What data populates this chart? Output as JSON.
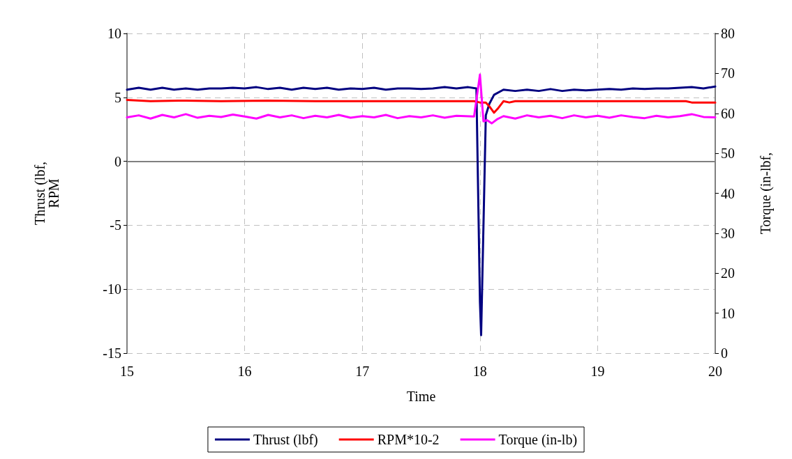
{
  "chart_data": {
    "type": "line",
    "xlabel": "Time",
    "ylabel": "Thrust (lbf,\nRPM",
    "y2label": "Torque (in-lbf,",
    "xlim": [
      15,
      20
    ],
    "xticks": [
      15,
      16,
      17,
      18,
      19,
      20
    ],
    "ylim": [
      -15,
      10
    ],
    "yticks": [
      -15,
      -10,
      -5,
      0,
      5,
      10
    ],
    "y2lim": [
      0,
      80
    ],
    "y2ticks": [
      0,
      10,
      20,
      30,
      40,
      50,
      60,
      70,
      80
    ],
    "grid": true,
    "legend": "bottom",
    "marker": "none",
    "line_style": "solid",
    "series": [
      {
        "name": "Thrust (lbf)",
        "color": "#000080",
        "x": [
          15.0,
          15.1,
          15.2,
          15.3,
          15.4,
          15.5,
          15.6,
          15.7,
          15.8,
          15.9,
          16.0,
          16.1,
          16.2,
          16.3,
          16.4,
          16.5,
          16.6,
          16.7,
          16.8,
          16.9,
          17.0,
          17.1,
          17.2,
          17.3,
          17.4,
          17.5,
          17.6,
          17.7,
          17.8,
          17.9,
          17.97,
          18.0,
          18.01,
          18.03,
          18.05,
          18.08,
          18.12,
          18.2,
          18.3,
          18.4,
          18.5,
          18.6,
          18.7,
          18.8,
          18.9,
          19.0,
          19.1,
          19.2,
          19.3,
          19.4,
          19.5,
          19.6,
          19.7,
          19.8,
          19.9,
          20.0
        ],
        "values": [
          5.6,
          5.75,
          5.6,
          5.75,
          5.6,
          5.7,
          5.6,
          5.7,
          5.7,
          5.75,
          5.7,
          5.8,
          5.65,
          5.75,
          5.6,
          5.75,
          5.65,
          5.75,
          5.6,
          5.7,
          5.65,
          5.75,
          5.6,
          5.7,
          5.7,
          5.65,
          5.7,
          5.8,
          5.7,
          5.8,
          5.7,
          -11,
          -13.6,
          -5,
          3.6,
          4.5,
          5.2,
          5.6,
          5.5,
          5.6,
          5.5,
          5.65,
          5.5,
          5.6,
          5.55,
          5.6,
          5.65,
          5.6,
          5.7,
          5.65,
          5.7,
          5.7,
          5.75,
          5.8,
          5.7,
          5.85
        ]
      },
      {
        "name": "RPM*10-2",
        "color": "#ff0000",
        "x": [
          15.0,
          15.2,
          15.5,
          15.8,
          16.2,
          16.6,
          17.0,
          17.5,
          17.95,
          18.0,
          18.05,
          18.08,
          18.12,
          18.15,
          18.2,
          18.25,
          18.3,
          19.0,
          19.5,
          19.75,
          19.8,
          20.0
        ],
        "values": [
          4.8,
          4.7,
          4.75,
          4.7,
          4.75,
          4.7,
          4.7,
          4.7,
          4.7,
          4.6,
          4.6,
          4.3,
          3.8,
          4.1,
          4.7,
          4.6,
          4.7,
          4.7,
          4.7,
          4.7,
          4.6,
          4.6
        ]
      },
      {
        "name": "Torque (in-lb)",
        "color": "#ff00ff",
        "axis": "y2",
        "x": [
          15.0,
          15.1,
          15.2,
          15.3,
          15.4,
          15.5,
          15.6,
          15.7,
          15.8,
          15.9,
          16.0,
          16.1,
          16.2,
          16.3,
          16.4,
          16.5,
          16.6,
          16.7,
          16.8,
          16.9,
          17.0,
          17.1,
          17.2,
          17.3,
          17.4,
          17.5,
          17.6,
          17.7,
          17.8,
          17.95,
          18.0,
          18.03,
          18.06,
          18.1,
          18.15,
          18.2,
          18.3,
          18.4,
          18.5,
          18.6,
          18.7,
          18.8,
          18.9,
          19.0,
          19.1,
          19.2,
          19.3,
          19.4,
          19.5,
          19.6,
          19.7,
          19.8,
          19.9,
          20.0
        ],
        "values": [
          59,
          59.5,
          58.7,
          59.6,
          59,
          59.8,
          58.9,
          59.4,
          59.1,
          59.7,
          59.2,
          58.7,
          59.6,
          59,
          59.5,
          58.8,
          59.4,
          59,
          59.6,
          58.9,
          59.3,
          59,
          59.6,
          58.8,
          59.3,
          59,
          59.5,
          58.9,
          59.4,
          59.2,
          69.7,
          58,
          58.3,
          57.5,
          58.6,
          59.3,
          58.7,
          59.5,
          59,
          59.4,
          58.8,
          59.5,
          59,
          59.4,
          58.9,
          59.5,
          59.1,
          58.8,
          59.4,
          59,
          59.3,
          59.8,
          59.1,
          59
        ]
      }
    ]
  }
}
